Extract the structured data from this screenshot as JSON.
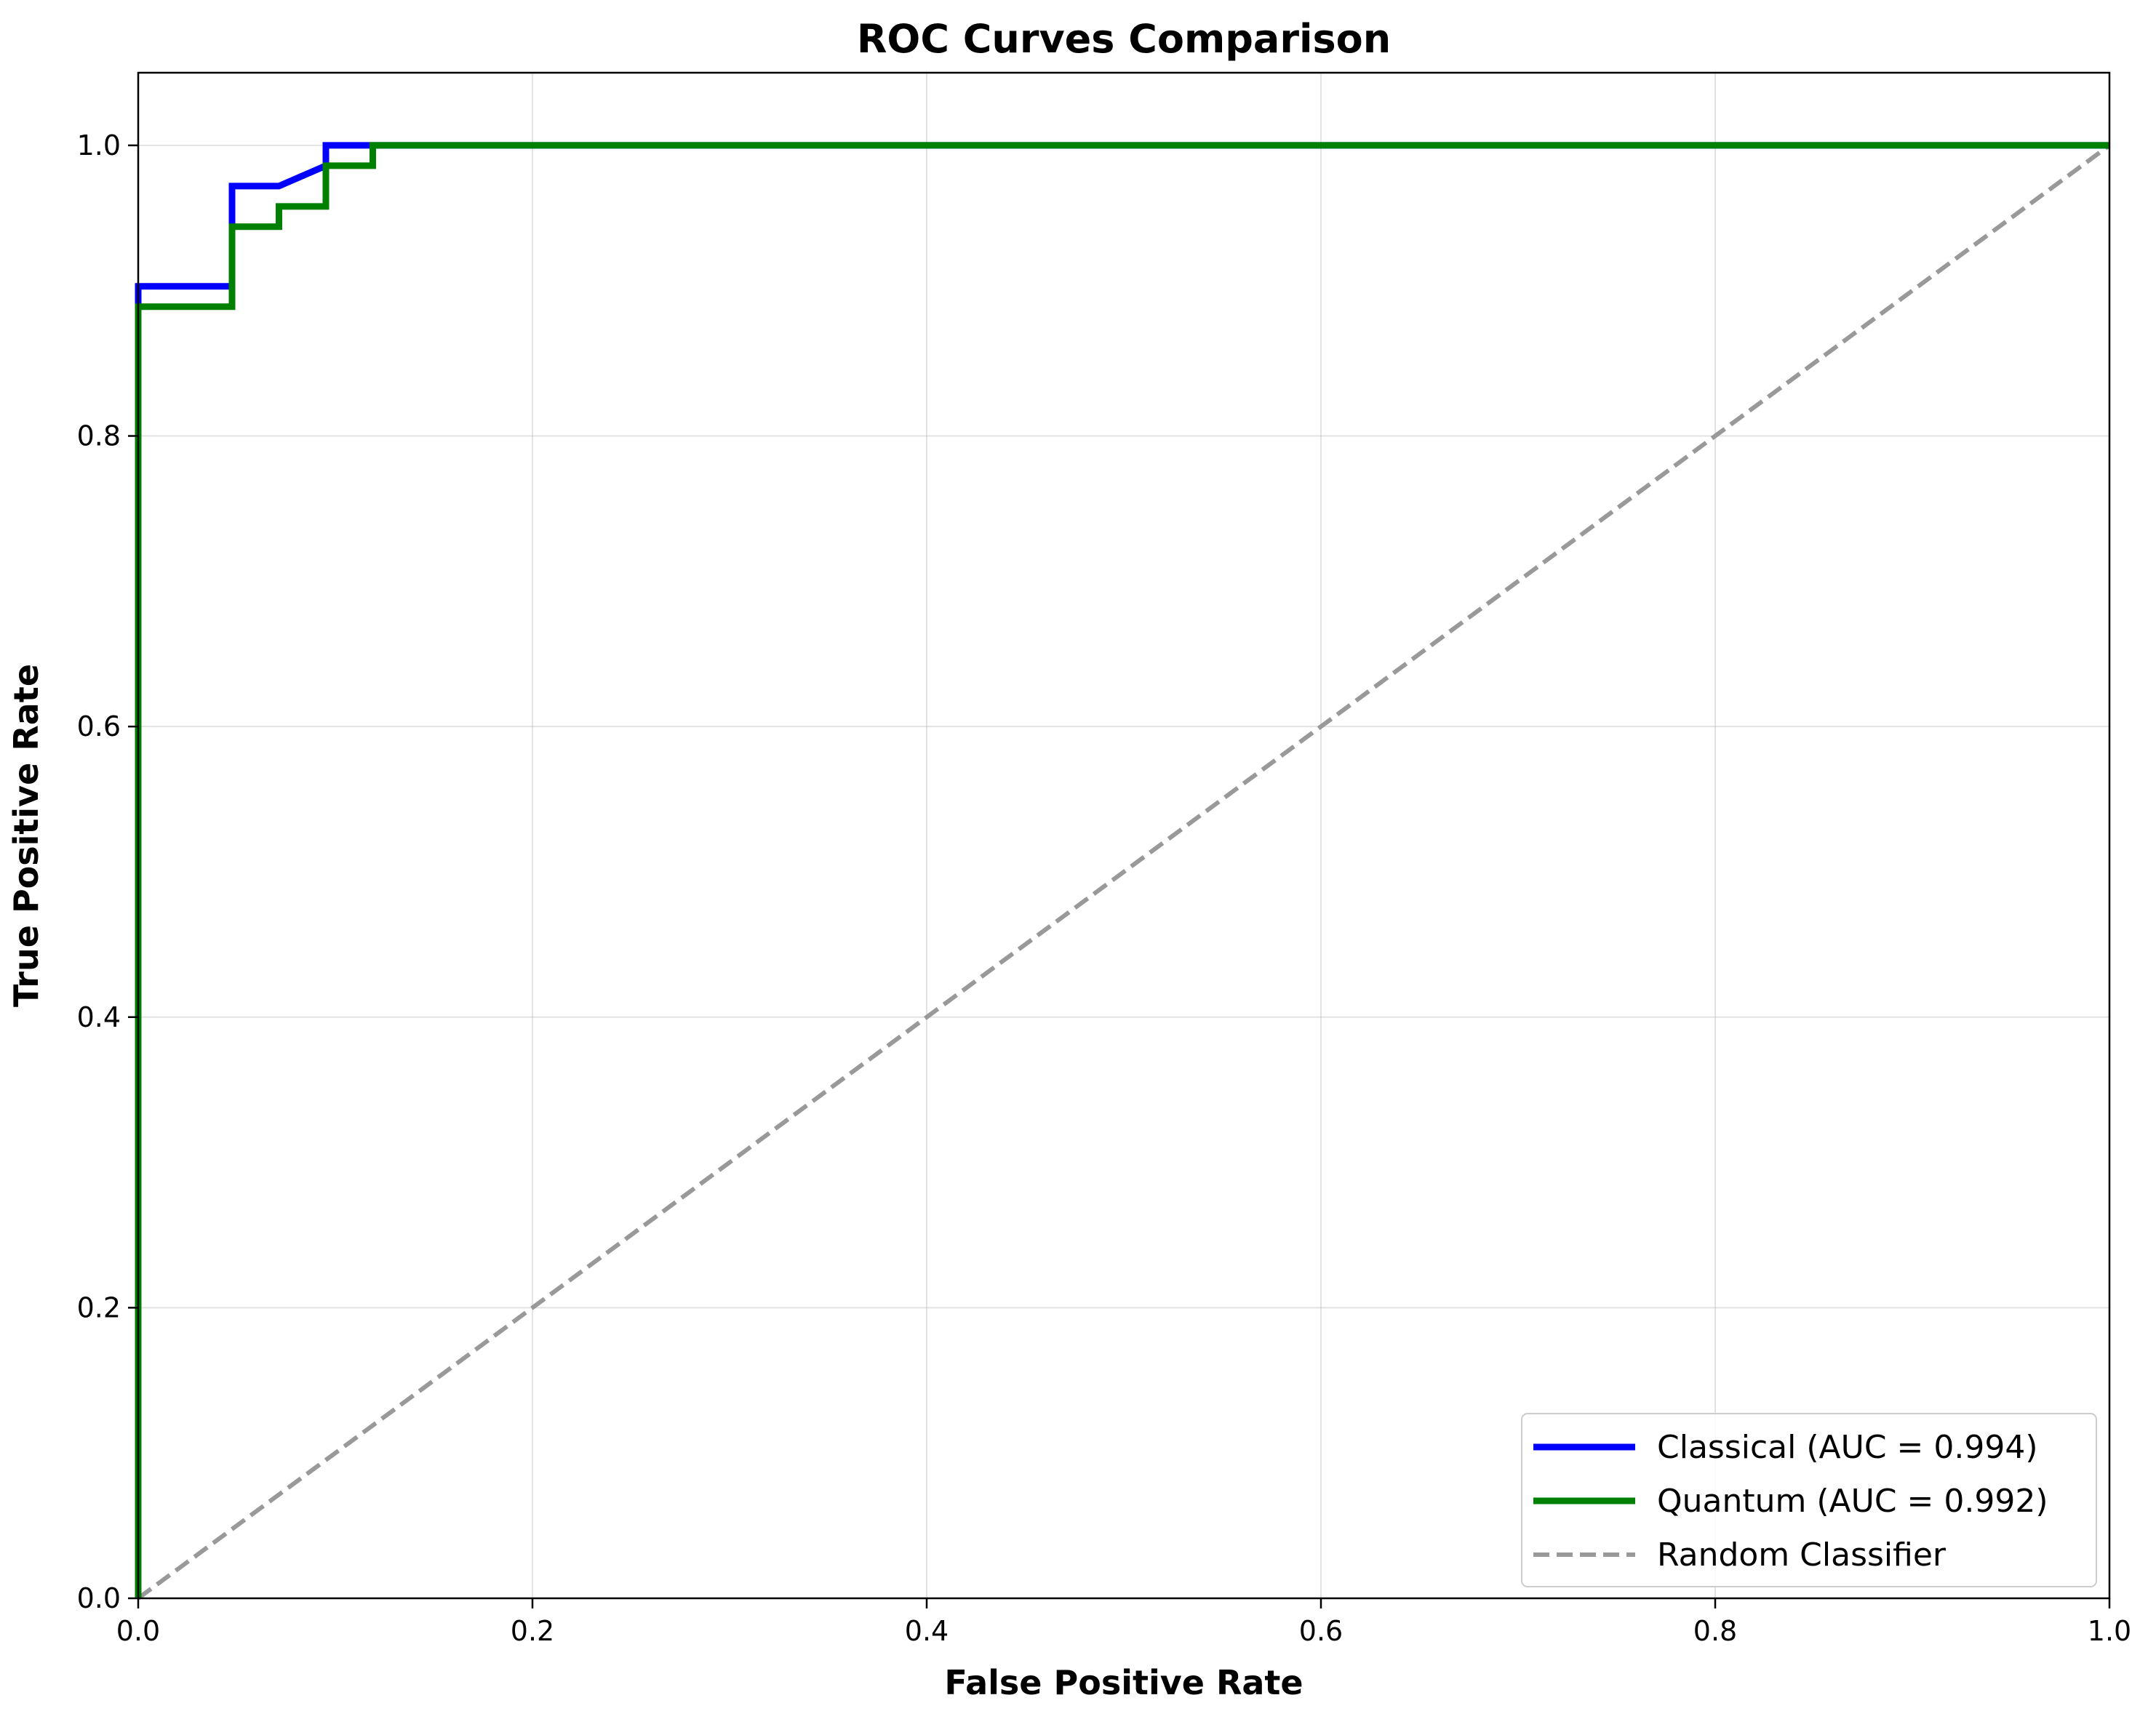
{
  "chart_data": {
    "type": "line",
    "title": "ROC Curves Comparison",
    "xlabel": "False Positive Rate",
    "ylabel": "True Positive Rate",
    "xlim": [
      0.0,
      1.0
    ],
    "ylim": [
      0.0,
      1.05
    ],
    "xticks": [
      0.0,
      0.2,
      0.4,
      0.6,
      0.8,
      1.0
    ],
    "yticks": [
      0.0,
      0.2,
      0.4,
      0.6,
      0.8,
      1.0
    ],
    "xtick_labels": [
      "0.0",
      "0.2",
      "0.4",
      "0.6",
      "0.8",
      "1.0"
    ],
    "ytick_labels": [
      "0.0",
      "0.2",
      "0.4",
      "0.6",
      "0.8",
      "1.0"
    ],
    "grid": true,
    "legend_position": "lower-right",
    "series": [
      {
        "name": "Classical (AUC = 0.994)",
        "color": "#0000ff",
        "style": "solid",
        "x": [
          0.0,
          0.0,
          0.0476,
          0.0476,
          0.0714,
          0.0952,
          0.0952,
          0.119,
          1.0
        ],
        "y": [
          0.0,
          0.903,
          0.903,
          0.972,
          0.972,
          0.986,
          1.0,
          1.0,
          1.0
        ]
      },
      {
        "name": "Quantum (AUC = 0.992)",
        "color": "#008000",
        "style": "solid",
        "x": [
          0.0,
          0.0,
          0.0476,
          0.0476,
          0.0714,
          0.0714,
          0.0952,
          0.0952,
          0.119,
          0.119,
          1.0
        ],
        "y": [
          0.0,
          0.889,
          0.889,
          0.944,
          0.944,
          0.958,
          0.958,
          0.986,
          0.986,
          1.0,
          1.0
        ]
      },
      {
        "name": "Random Classifier",
        "color": "#999999",
        "style": "dashed",
        "x": [
          0.0,
          1.0
        ],
        "y": [
          0.0,
          1.0
        ]
      }
    ]
  }
}
